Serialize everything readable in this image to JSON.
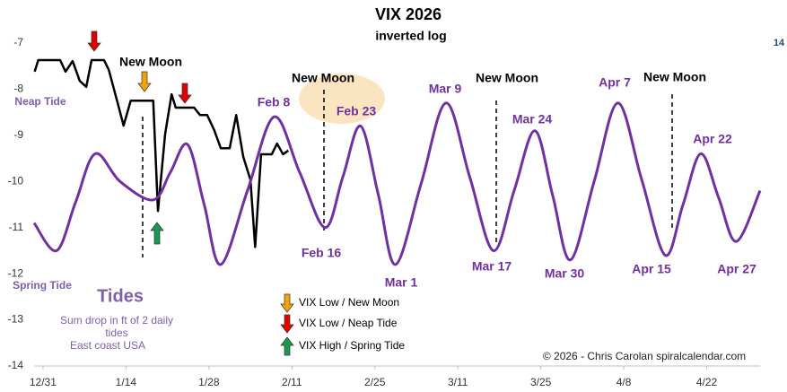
{
  "chart_data": {
    "type": "line",
    "title": "VIX 2026",
    "subtitle": "inverted log",
    "ylim": [
      -14,
      -7
    ],
    "yticks": [
      -7,
      -8,
      -9,
      -10,
      -11,
      -12,
      -13,
      -14
    ],
    "xlim": [
      -1.5,
      121
    ],
    "xticks": [
      {
        "value": 0,
        "label": "12/31"
      },
      {
        "value": 14,
        "label": "1/14"
      },
      {
        "value": 28,
        "label": "1/28"
      },
      {
        "value": 42,
        "label": "2/11"
      },
      {
        "value": 56,
        "label": "2/25"
      },
      {
        "value": 70,
        "label": "3/11"
      },
      {
        "value": 84,
        "label": "3/25"
      },
      {
        "value": 98,
        "label": "4/8"
      },
      {
        "value": 112,
        "label": "4/22"
      }
    ],
    "series": [
      {
        "color": "#000000",
        "x": [
          -1.4,
          -0.8,
          1.2,
          2.9,
          3.8,
          5.0,
          6.2,
          7.3,
          8.2,
          10.3,
          11.1,
          12.6,
          13.6,
          14.8,
          18.6,
          19.4,
          20.6,
          21.7,
          22.4,
          25.5,
          26.5,
          27.7,
          28.9,
          30.0,
          31.5,
          32.6,
          33.8,
          35.0,
          35.8,
          36.8,
          38.6,
          39.5,
          40.5,
          41.4
        ],
        "values": [
          -7.62,
          -7.37,
          -7.37,
          -7.37,
          -7.62,
          -7.39,
          -7.82,
          -7.95,
          -7.37,
          -7.37,
          -7.58,
          -8.3,
          -8.79,
          -8.25,
          -8.25,
          -10.64,
          -8.98,
          -8.11,
          -8.4,
          -8.4,
          -8.56,
          -8.56,
          -8.89,
          -9.28,
          -9.28,
          -8.56,
          -9.47,
          -9.96,
          -11.42,
          -9.41,
          -9.41,
          -9.18,
          -9.41,
          -9.33
        ]
      },
      {
        "name": "Tides",
        "color": "#7030a0",
        "x": [
          -1.5,
          2.3,
          5.5,
          8.8,
          13,
          18.6,
          21.5,
          24.4,
          27.2,
          30,
          34.5,
          39,
          43.3,
          47.6,
          50.6,
          53.6,
          56.6,
          59.5,
          63.8,
          68,
          72,
          76,
          79.5,
          83,
          86,
          89,
          93,
          97,
          101,
          105,
          108,
          111,
          114,
          117,
          121
        ],
        "values": [
          -10.9,
          -11.5,
          -10.45,
          -9.4,
          -10.0,
          -10.4,
          -9.8,
          -9.2,
          -10.5,
          -11.8,
          -10.2,
          -8.6,
          -9.8,
          -11.0,
          -9.9,
          -8.8,
          -10.3,
          -11.8,
          -10.05,
          -8.3,
          -9.9,
          -11.5,
          -10.2,
          -8.9,
          -10.3,
          -11.7,
          -10.0,
          -8.3,
          -9.95,
          -11.6,
          -10.5,
          -9.4,
          -10.35,
          -11.3,
          -10.2
        ]
      }
    ],
    "date_labels": [
      "Feb 8",
      "Feb 16",
      "Feb 23",
      "Mar 1",
      "Mar 9",
      "Mar 17",
      "Mar 24",
      "Mar 30",
      "Apr 7",
      "Apr 15",
      "Apr 22",
      "Apr 27"
    ],
    "moon_labels": [
      "New Moon",
      "New Moon",
      "New Moon",
      "New Moon"
    ],
    "notes": {
      "neap": "Neap Tide",
      "spring": "Spring Tide",
      "desc": "Sum drop in ft of 2 daily tides",
      "region": "East coast USA",
      "corner": "14",
      "credit": "© 2026 - Chris Carolan  spiralcalendar.com"
    },
    "legend": [
      {
        "label": "VIX Low / New Moon",
        "color": "#f0a30a"
      },
      {
        "label": "VIX Low / Neap Tide",
        "color": "#e00000"
      },
      {
        "label": "VIX High / Spring Tide",
        "color": "#1a9850"
      }
    ]
  }
}
